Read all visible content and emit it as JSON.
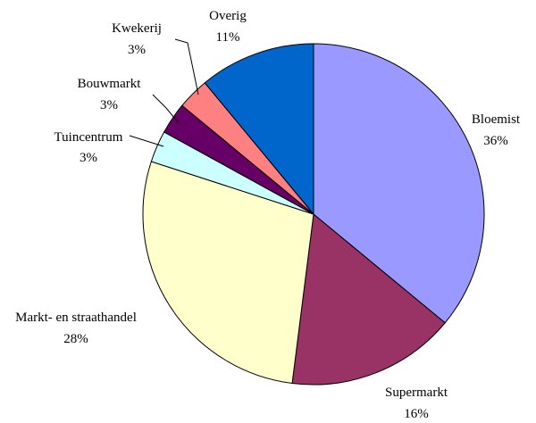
{
  "chart_data": {
    "type": "pie",
    "title": "",
    "slices": [
      {
        "name": "Bloemist",
        "value": 36,
        "label": "36%",
        "color": "#9999FF"
      },
      {
        "name": "Supermarkt",
        "value": 16,
        "label": "16%",
        "color": "#993366"
      },
      {
        "name": "Markt- en straathandel",
        "value": 28,
        "label": "28%",
        "color": "#FFFFCC"
      },
      {
        "name": "Tuincentrum",
        "value": 3,
        "label": "3%",
        "color": "#CCFFFF"
      },
      {
        "name": "Bouwmarkt",
        "value": 3,
        "label": "3%",
        "color": "#660066"
      },
      {
        "name": "Kwekerij",
        "value": 3,
        "label": "3%",
        "color": "#FF8080"
      },
      {
        "name": "Overig",
        "value": 11,
        "label": "11%",
        "color": "#0066CC"
      }
    ],
    "legend": "none",
    "labels": "outside slices, category name above percentage"
  }
}
